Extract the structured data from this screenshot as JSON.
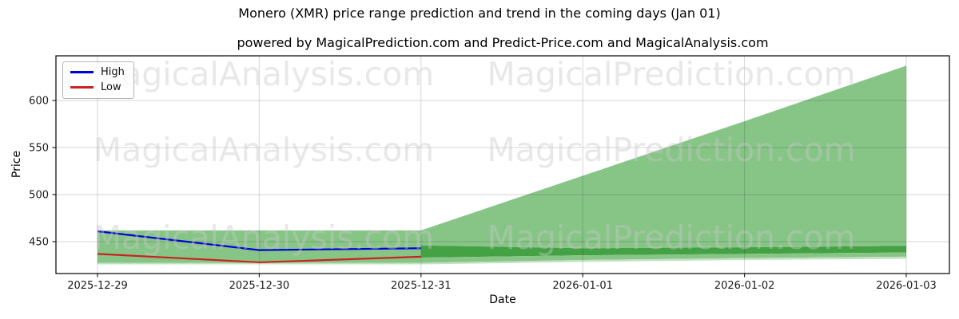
{
  "header": {
    "title": "Monero (XMR) price range prediction and trend in the coming days (Jan 01)",
    "subtitle": "powered by MagicalPrediction.com and Predict-Price.com and MagicalAnalysis.com"
  },
  "legend": {
    "items": [
      {
        "label": "High",
        "color": "#0000d6"
      },
      {
        "label": "Low",
        "color": "#cb2222"
      }
    ]
  },
  "watermarks": {
    "color": "rgba(200,200,200,0.42)",
    "rows": [
      {
        "left": "MagicalAnalysis.com",
        "right": "MagicalPrediction.com"
      },
      {
        "left": "MagicalAnalysis.com",
        "right": "MagicalPrediction.com"
      },
      {
        "left": "MagicalAnalysis.com",
        "right": "MagicalPrediction.com"
      }
    ]
  },
  "chart_data": {
    "type": "line",
    "title": "Monero (XMR) price range prediction and trend in the coming days (Jan 01)",
    "xlabel": "Date",
    "ylabel": "Price",
    "grid": true,
    "legend_position": "upper left",
    "x_dates": [
      "2025-12-29",
      "2025-12-30",
      "2025-12-31",
      "2026-01-01",
      "2026-01-02",
      "2026-01-03"
    ],
    "yticks": [
      450,
      500,
      550,
      600
    ],
    "ylim": [
      416,
      648
    ],
    "series": [
      {
        "name": "High",
        "color": "#0000d6",
        "dates": [
          "2025-12-29",
          "2025-12-30",
          "2025-12-31"
        ],
        "values": [
          461,
          441,
          443
        ]
      },
      {
        "name": "Low",
        "color": "#cb2222",
        "dates": [
          "2025-12-29",
          "2025-12-30",
          "2025-12-31"
        ],
        "values": [
          437,
          428,
          434
        ]
      }
    ],
    "history_band": {
      "dates": [
        "2025-12-29",
        "2025-12-31"
      ],
      "top": [
        462,
        462
      ],
      "bottom": [
        427.5,
        427.5
      ],
      "light_bottom": [
        425.8,
        425.8
      ],
      "color": "#87c587",
      "light_color": "#c1e1c1"
    },
    "forecast_bands": {
      "dates": [
        "2025-12-31",
        "2026-01-01",
        "2026-01-02",
        "2026-01-03"
      ],
      "outer_top": [
        462,
        520,
        578,
        637
      ],
      "inner_top": [
        446,
        443,
        444,
        445.5
      ],
      "inner_bottom": [
        433,
        435.5,
        437,
        438.5
      ],
      "outer_bottom": [
        427.5,
        430.5,
        432.5,
        434
      ],
      "light_bottom": [
        425.8,
        428.5,
        430.5,
        431.8
      ],
      "color": "#87c587",
      "overlap_color": "#44a244",
      "light_color": "#c1e1c1"
    }
  }
}
